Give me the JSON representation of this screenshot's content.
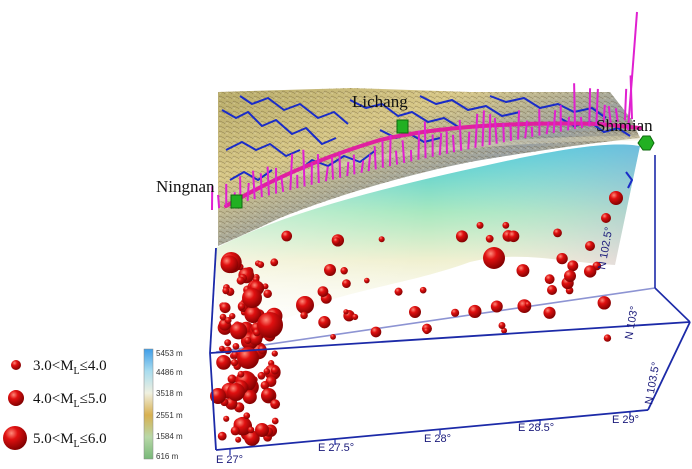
{
  "places": [
    {
      "name": "Ningnan"
    },
    {
      "name": "Lichang"
    },
    {
      "name": "Shimian"
    }
  ],
  "axes": {
    "bottom_ticks": [
      "E 27°",
      "E 27.5°",
      "E 28°",
      "E 28.5°",
      "E 29°"
    ],
    "right_ticks": [
      "N 102.5°",
      "N 103°",
      "N 103.5°"
    ]
  },
  "colorbar": {
    "ticks": [
      "5453 m",
      "4486 m",
      "3518 m",
      "2551 m",
      "1584 m",
      "616 m"
    ],
    "colors": [
      "#3fa9e8",
      "#a8dcef",
      "#e8e8c8",
      "#d8b85a",
      "#a8d8a0",
      "#78b878"
    ]
  },
  "legend": [
    {
      "prefix": "3.0<M",
      "sub": "L",
      "suffix": "≤4.0",
      "magnitude_min": 3.0,
      "magnitude_max": 4.0
    },
    {
      "prefix": "4.0<M",
      "sub": "L",
      "suffix": "≤5.0",
      "magnitude_min": 4.0,
      "magnitude_max": 5.0
    },
    {
      "prefix": "5.0<M",
      "sub": "L",
      "suffix": "≤6.0",
      "magnitude_min": 5.0,
      "magnitude_max": 6.0
    }
  ],
  "colors": {
    "event": "#d40000",
    "event_edge": "#7a0000",
    "box": "#1c2aa8",
    "rivers": "#1a2cc8",
    "stations": "#e020d0",
    "town_marker": "#22b022"
  }
}
